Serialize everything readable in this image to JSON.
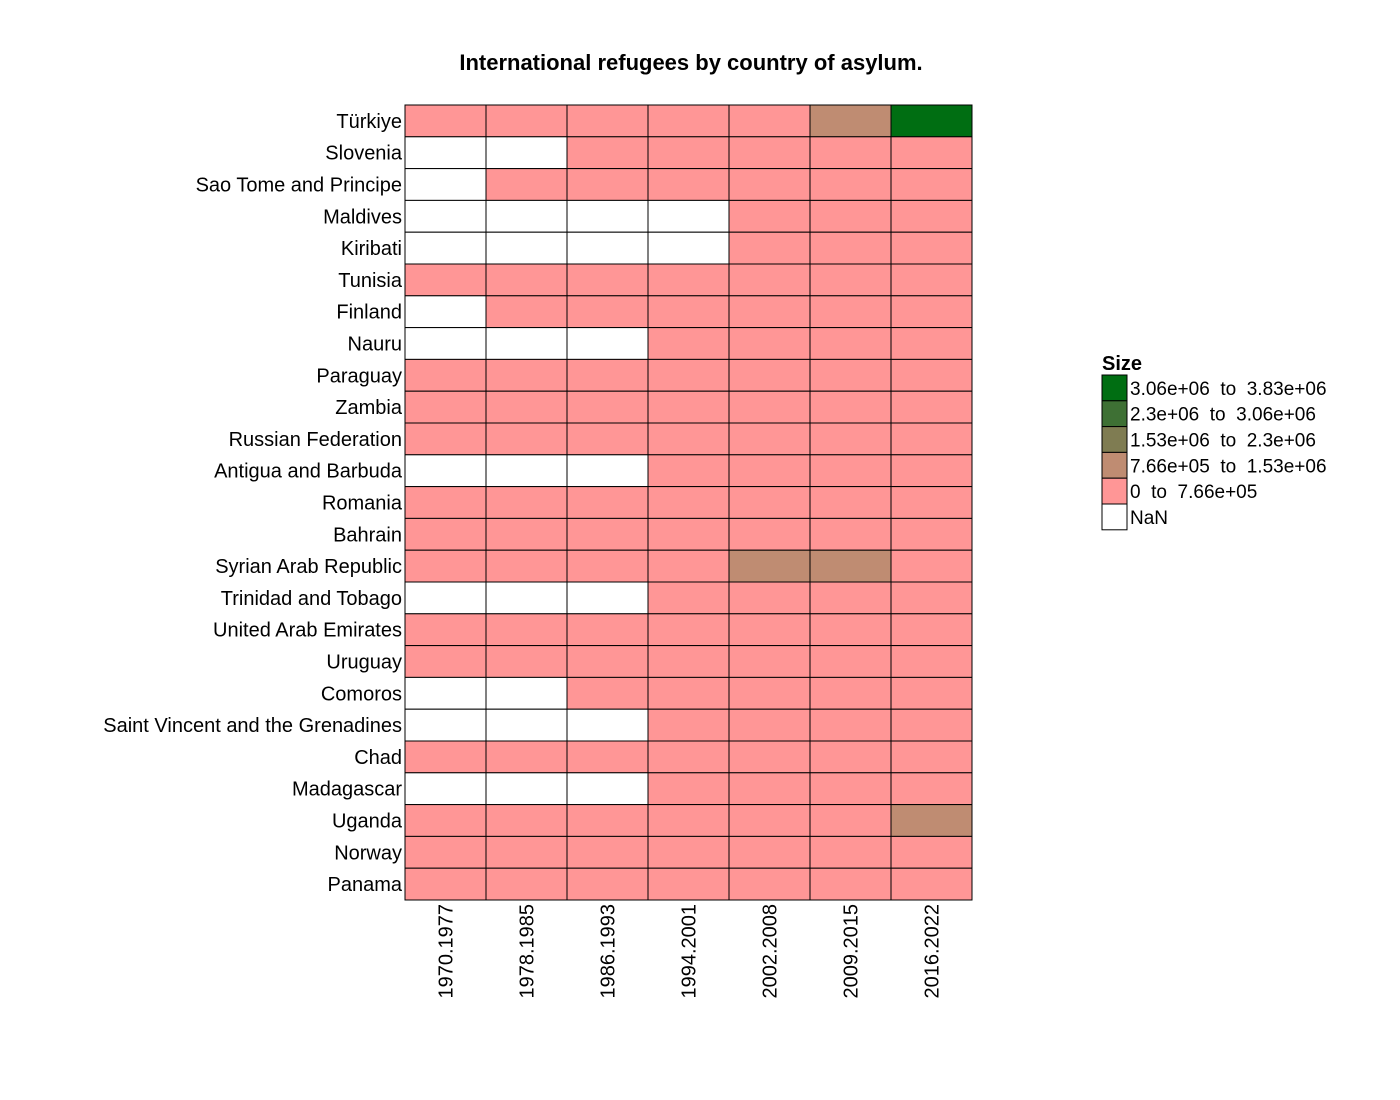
{
  "chart_data": {
    "type": "heatmap",
    "title": "International refugees by country of asylum.",
    "x": [
      "1970.1977",
      "1978.1985",
      "1986.1993",
      "1994.2001",
      "2002.2008",
      "2009.2015",
      "2016.2022"
    ],
    "y": [
      "Türkiye",
      "Slovenia",
      "Sao Tome and Principe",
      "Maldives",
      "Kiribati",
      "Tunisia",
      "Finland",
      "Nauru",
      "Paraguay",
      "Zambia",
      "Russian Federation",
      "Antigua and Barbuda",
      "Romania",
      "Bahrain",
      "Syrian Arab Republic",
      "Trinidad and Tobago",
      "United Arab Emirates",
      "Uruguay",
      "Comoros",
      "Saint Vincent and the Grenadines",
      "Chad",
      "Madagascar",
      "Uganda",
      "Norway",
      "Panama"
    ],
    "cells": [
      [
        1,
        1,
        1,
        1,
        1,
        2,
        5
      ],
      [
        0,
        0,
        1,
        1,
        1,
        1,
        1
      ],
      [
        0,
        1,
        1,
        1,
        1,
        1,
        1
      ],
      [
        0,
        0,
        0,
        0,
        1,
        1,
        1
      ],
      [
        0,
        0,
        0,
        0,
        1,
        1,
        1
      ],
      [
        1,
        1,
        1,
        1,
        1,
        1,
        1
      ],
      [
        0,
        1,
        1,
        1,
        1,
        1,
        1
      ],
      [
        0,
        0,
        0,
        1,
        1,
        1,
        1
      ],
      [
        1,
        1,
        1,
        1,
        1,
        1,
        1
      ],
      [
        1,
        1,
        1,
        1,
        1,
        1,
        1
      ],
      [
        1,
        1,
        1,
        1,
        1,
        1,
        1
      ],
      [
        0,
        0,
        0,
        1,
        1,
        1,
        1
      ],
      [
        1,
        1,
        1,
        1,
        1,
        1,
        1
      ],
      [
        1,
        1,
        1,
        1,
        1,
        1,
        1
      ],
      [
        1,
        1,
        1,
        1,
        2,
        2,
        1
      ],
      [
        0,
        0,
        0,
        1,
        1,
        1,
        1
      ],
      [
        1,
        1,
        1,
        1,
        1,
        1,
        1
      ],
      [
        1,
        1,
        1,
        1,
        1,
        1,
        1
      ],
      [
        0,
        0,
        1,
        1,
        1,
        1,
        1
      ],
      [
        0,
        0,
        0,
        1,
        1,
        1,
        1
      ],
      [
        1,
        1,
        1,
        1,
        1,
        1,
        1
      ],
      [
        0,
        0,
        0,
        1,
        1,
        1,
        1
      ],
      [
        1,
        1,
        1,
        1,
        1,
        1,
        2
      ],
      [
        1,
        1,
        1,
        1,
        1,
        1,
        1
      ],
      [
        1,
        1,
        1,
        1,
        1,
        1,
        1
      ]
    ],
    "legend": {
      "title": "Size",
      "position": "right",
      "bins": [
        {
          "label": "3.06e+06  to  3.83e+06",
          "color": "#006e12"
        },
        {
          "label": "2.3e+06  to  3.06e+06",
          "color": "#3e7034"
        },
        {
          "label": "1.53e+06  to  2.3e+06",
          "color": "#7f7c52"
        },
        {
          "label": "7.66e+05  to  1.53e+06",
          "color": "#bf8c72"
        },
        {
          "label": "0  to  7.66e+05",
          "color": "#ff9696"
        },
        {
          "label": "NaN",
          "color": "#ffffff"
        }
      ]
    },
    "grid": false
  }
}
